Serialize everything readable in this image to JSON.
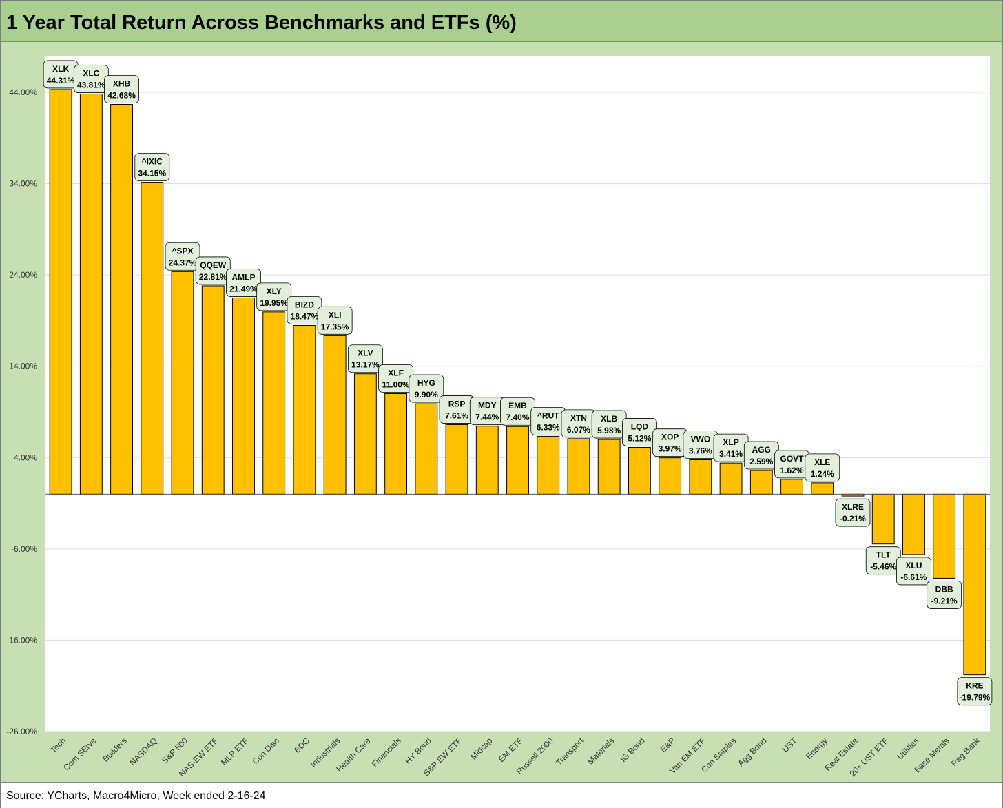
{
  "title": "1 Year Total Return Across Benchmarks and ETFs (%)",
  "source": "Source: YCharts, Macro4Micro, Week ended 2-16-24",
  "colors": {
    "bar": "#ffc000",
    "bar_stroke": "#000000",
    "label_bg": "#e2efda",
    "plot_bg": "#ffffff",
    "frame_bg": "#c6e0b4",
    "title_bg": "#a9d08e",
    "grid": "#d9d9d9"
  },
  "chart_data": {
    "type": "bar",
    "title": "1 Year Total Return Across Benchmarks and ETFs (%)",
    "xlabel": "",
    "ylabel": "",
    "ylim": [
      -26,
      48
    ],
    "yticks": [
      44,
      34,
      24,
      14,
      4,
      -6,
      -16,
      -26
    ],
    "ytick_labels": [
      "44.00%",
      "34.00%",
      "24.00%",
      "14.00%",
      "4.00%",
      "-6.00%",
      "-16.00%",
      "-26.00%"
    ],
    "grid": true,
    "legend": "none",
    "categories": [
      "Tech",
      "Com SErve",
      "Builders",
      "NASDAQ",
      "S&P 500",
      "NAS-EW ETF",
      "MLP ETF",
      "Con Disc",
      "BDC",
      "Industrials",
      "Health Care",
      "Financials",
      "HY Bond",
      "S&P EW ETF",
      "Midcap",
      "EM ETF",
      "Russell 2000",
      "Transport",
      "Materials",
      "IG Bond",
      "E&P",
      "Van EM ETF",
      "Con Staples",
      "Agg Bond",
      "UST",
      "Energy",
      "Real Estate",
      "20+ UST ETF",
      "Utilities",
      "Base Metals",
      "Reg Bank"
    ],
    "tickers": [
      "XLK",
      "XLC",
      "XHB",
      "^IXIC",
      "^SPX",
      "QQEW",
      "AMLP",
      "XLY",
      "BIZD",
      "XLI",
      "XLV",
      "XLF",
      "HYG",
      "RSP",
      "MDY",
      "EMB",
      "^RUT",
      "XTN",
      "XLB",
      "LQD",
      "XOP",
      "VWO",
      "XLP",
      "AGG",
      "GOVT",
      "XLE",
      "XLRE",
      "TLT",
      "XLU",
      "DBB",
      "KRE"
    ],
    "value_labels": [
      "44.31%",
      "43.81%",
      "42.68%",
      "34.15%",
      "24.37%",
      "22.81%",
      "21.49%",
      "19.95%",
      "18.47%",
      "17.35%",
      "13.17%",
      "11.00%",
      "9.90%",
      "7.61%",
      "7.44%",
      "7.40%",
      "6.33%",
      "6.07%",
      "5.98%",
      "5.12%",
      "3.97%",
      "3.76%",
      "3.41%",
      "2.59%",
      "1.62%",
      "1.24%",
      "-0.21%",
      "-5.46%",
      "-6.61%",
      "-9.21%",
      "-19.79%"
    ],
    "values": [
      44.31,
      43.81,
      42.68,
      34.15,
      24.37,
      22.81,
      21.49,
      19.95,
      18.47,
      17.35,
      13.17,
      11.0,
      9.9,
      7.61,
      7.44,
      7.4,
      6.33,
      6.07,
      5.98,
      5.12,
      3.97,
      3.76,
      3.41,
      2.59,
      1.62,
      1.24,
      -0.21,
      -5.46,
      -6.61,
      -9.21,
      -19.79
    ]
  }
}
